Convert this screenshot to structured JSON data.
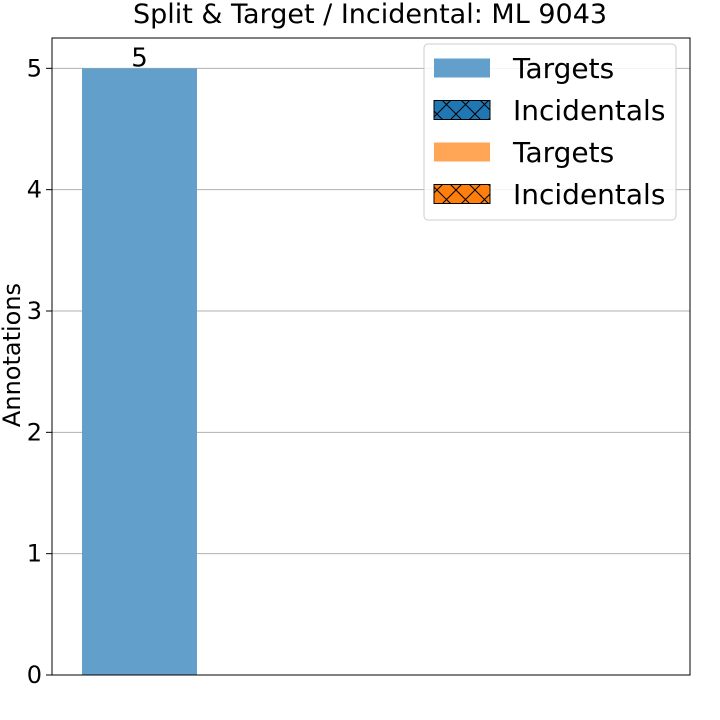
{
  "chart_data": {
    "type": "bar",
    "title": "Split & Target / Incidental: ML 9043",
    "xlabel": "",
    "ylabel": "Annotations",
    "ylim": [
      0,
      5.25
    ],
    "yticks": [
      0,
      1,
      2,
      3,
      4,
      5
    ],
    "grid": "horizontal",
    "legend_position": "top-right",
    "bars": [
      {
        "series": "Targets",
        "value": 5,
        "label": "5",
        "color": "#62a0cb",
        "hatch": false
      }
    ],
    "legend": [
      {
        "label": "Targets",
        "color": "#62a0cb",
        "hatch": false
      },
      {
        "label": "Incidentals",
        "color": "#1f77b4",
        "hatch": true
      },
      {
        "label": "Targets",
        "color": "#ffa556",
        "hatch": false
      },
      {
        "label": "Incidentals",
        "color": "#ff7f0e",
        "hatch": true
      }
    ]
  }
}
